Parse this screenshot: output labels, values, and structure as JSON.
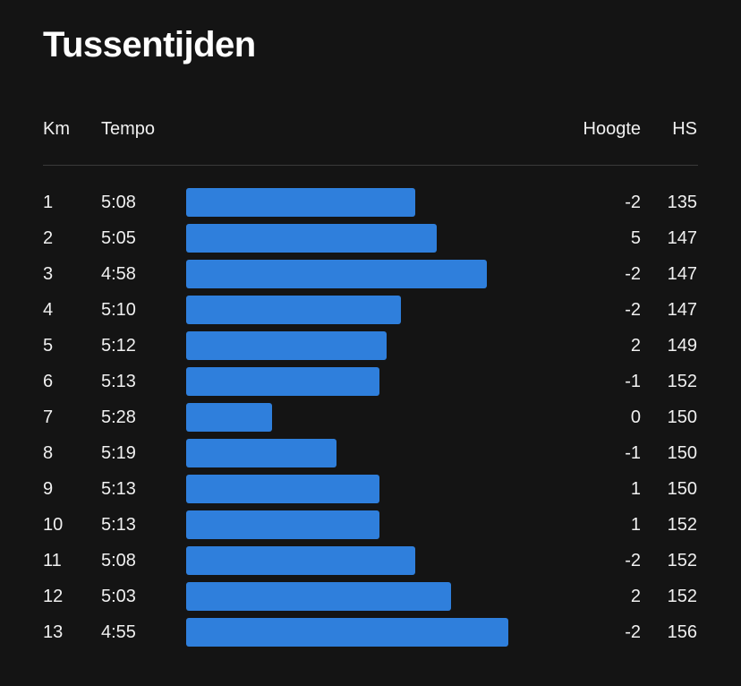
{
  "title": "Tussentijden",
  "headers": {
    "km": "Km",
    "tempo": "Tempo",
    "hoogte": "Hoogte",
    "hs": "HS"
  },
  "colors": {
    "bar": "#2f7fdc",
    "background": "#141414"
  },
  "chart_data": {
    "type": "table",
    "title": "Tussentijden",
    "columns": [
      "Km",
      "Tempo",
      "Hoogte",
      "HS"
    ],
    "rows": [
      {
        "km": "1",
        "tempo": "5:08",
        "hoogte": "-2",
        "hs": "135"
      },
      {
        "km": "2",
        "tempo": "5:05",
        "hoogte": "5",
        "hs": "147"
      },
      {
        "km": "3",
        "tempo": "4:58",
        "hoogte": "-2",
        "hs": "147"
      },
      {
        "km": "4",
        "tempo": "5:10",
        "hoogte": "-2",
        "hs": "147"
      },
      {
        "km": "5",
        "tempo": "5:12",
        "hoogte": "2",
        "hs": "149"
      },
      {
        "km": "6",
        "tempo": "5:13",
        "hoogte": "-1",
        "hs": "152"
      },
      {
        "km": "7",
        "tempo": "5:28",
        "hoogte": "0",
        "hs": "150"
      },
      {
        "km": "8",
        "tempo": "5:19",
        "hoogte": "-1",
        "hs": "150"
      },
      {
        "km": "9",
        "tempo": "5:13",
        "hoogte": "1",
        "hs": "150"
      },
      {
        "km": "10",
        "tempo": "5:13",
        "hoogte": "1",
        "hs": "152"
      },
      {
        "km": "11",
        "tempo": "5:08",
        "hoogte": "-2",
        "hs": "152"
      },
      {
        "km": "12",
        "tempo": "5:03",
        "hoogte": "2",
        "hs": "152"
      },
      {
        "km": "13",
        "tempo": "4:55",
        "hoogte": "-2",
        "hs": "156"
      }
    ]
  }
}
